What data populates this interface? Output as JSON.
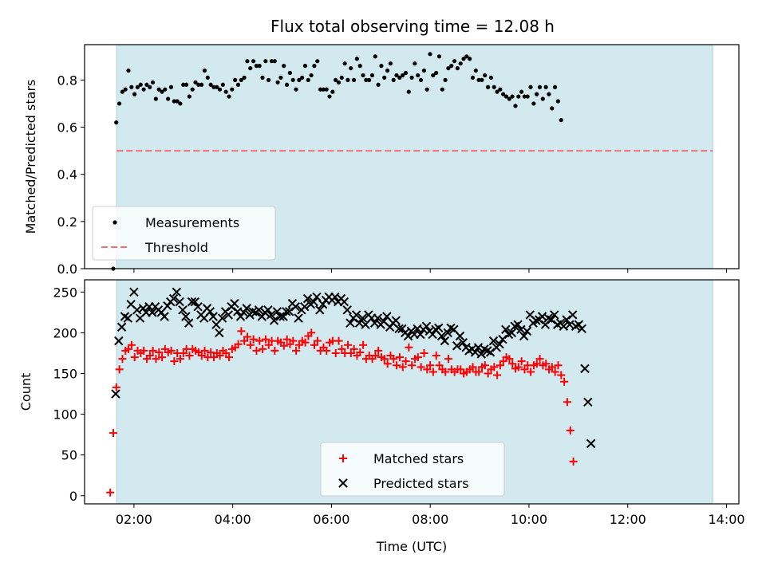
{
  "chart_data": [
    {
      "type": "scatter",
      "title": "Flux total observing time = 12.08 h",
      "xlabel": "",
      "ylabel": "Matched/Predicted stars",
      "xlim_hours": [
        1.0,
        14.25
      ],
      "ylim": [
        0,
        0.95
      ],
      "yticks": [
        0.0,
        0.2,
        0.4,
        0.6,
        0.8
      ],
      "ytick_labels": [
        "0.0",
        "0.2",
        "0.4",
        "0.6",
        "0.8"
      ],
      "shaded_span_hours": [
        1.65,
        13.72
      ],
      "shade_color": "#d3e9f0",
      "legend_location": "lower-left",
      "series": [
        {
          "name": "Measurements",
          "marker": "dot",
          "color": "#000000",
          "x_start_hour": 1.58,
          "x_step_hour": 0.0617,
          "values": [
            0.0,
            0.62,
            0.7,
            0.75,
            0.76,
            0.84,
            0.77,
            0.74,
            0.77,
            0.78,
            0.76,
            0.78,
            0.77,
            0.79,
            0.72,
            0.76,
            0.75,
            0.76,
            0.72,
            0.77,
            0.71,
            0.71,
            0.7,
            0.78,
            0.78,
            0.73,
            0.76,
            0.79,
            0.78,
            0.78,
            0.84,
            0.81,
            0.78,
            0.77,
            0.77,
            0.76,
            0.78,
            0.75,
            0.73,
            0.76,
            0.8,
            0.78,
            0.8,
            0.81,
            0.88,
            0.85,
            0.88,
            0.86,
            0.86,
            0.81,
            0.88,
            0.8,
            0.88,
            0.88,
            0.79,
            0.81,
            0.86,
            0.78,
            0.83,
            0.8,
            0.76,
            0.8,
            0.81,
            0.86,
            0.8,
            0.82,
            0.86,
            0.88,
            0.76,
            0.76,
            0.76,
            0.73,
            0.75,
            0.8,
            0.79,
            0.81,
            0.87,
            0.8,
            0.85,
            0.8,
            0.89,
            0.86,
            0.82,
            0.8,
            0.8,
            0.82,
            0.9,
            0.78,
            0.86,
            0.81,
            0.84,
            0.87,
            0.8,
            0.82,
            0.81,
            0.82,
            0.83,
            0.75,
            0.81,
            0.87,
            0.82,
            0.8,
            0.84,
            0.76,
            0.91,
            0.82,
            0.83,
            0.9,
            0.76,
            0.8,
            0.85,
            0.86,
            0.88,
            0.85,
            0.87,
            0.89,
            0.9,
            0.89,
            0.81,
            0.84,
            0.8,
            0.8,
            0.82,
            0.77,
            0.81,
            0.77,
            0.75,
            0.76,
            0.74,
            0.73,
            0.72,
            0.73,
            0.69,
            0.73,
            0.75,
            0.73,
            0.73,
            0.77,
            0.7,
            0.74,
            0.77,
            0.72,
            0.77,
            0.74,
            0.68,
            0.77,
            0.71,
            0.63
          ]
        },
        {
          "name": "Threshold",
          "marker": "dashed-line",
          "color": "#f07070",
          "x_range_hours": [
            1.65,
            13.72
          ],
          "y": 0.5
        }
      ]
    },
    {
      "type": "scatter",
      "title": "",
      "xlabel": "Time (UTC)",
      "ylabel": "Count",
      "xlim_hours": [
        1.0,
        14.25
      ],
      "ylim": [
        -10,
        265
      ],
      "yticks": [
        0,
        50,
        100,
        150,
        200,
        250
      ],
      "ytick_labels": [
        "0",
        "50",
        "100",
        "150",
        "200",
        "250"
      ],
      "xticks_hours": [
        2,
        4,
        6,
        8,
        10,
        12,
        14
      ],
      "xtick_labels": [
        "02:00",
        "04:00",
        "06:00",
        "08:00",
        "10:00",
        "12:00",
        "14:00"
      ],
      "shaded_span_hours": [
        1.65,
        13.72
      ],
      "shade_color": "#d3e9f0",
      "legend_location": "lower-center",
      "series": [
        {
          "name": "Matched stars",
          "marker": "plus",
          "color": "#ff0000",
          "x_start_hour": 1.52,
          "x_step_hour": 0.0617,
          "values": [
            4,
            77,
            133,
            155,
            168,
            178,
            180,
            185,
            170,
            178,
            175,
            178,
            168,
            172,
            178,
            168,
            176,
            170,
            180,
            176,
            178,
            165,
            175,
            168,
            175,
            180,
            172,
            180,
            178,
            176,
            172,
            178,
            170,
            176,
            170,
            175,
            172,
            178,
            175,
            170,
            180,
            182,
            186,
            202,
            190,
            195,
            185,
            192,
            178,
            190,
            180,
            192,
            185,
            190,
            178,
            190,
            188,
            184,
            192,
            186,
            190,
            178,
            185,
            190,
            188,
            196,
            200,
            185,
            190,
            178,
            182,
            178,
            188,
            190,
            175,
            190,
            180,
            175,
            185,
            175,
            180,
            172,
            176,
            185,
            168,
            172,
            168,
            172,
            178,
            170,
            168,
            162,
            172,
            168,
            160,
            170,
            158,
            165,
            182,
            160,
            168,
            170,
            158,
            175,
            155,
            160,
            152,
            172,
            160,
            155,
            152,
            168,
            155,
            152,
            155,
            155,
            150,
            152,
            155,
            158,
            152,
            152,
            158,
            160,
            150,
            155,
            158,
            148,
            160,
            165,
            170,
            168,
            162,
            156,
            158,
            165,
            155,
            160,
            152,
            160,
            162,
            168,
            160,
            162,
            155,
            158,
            152,
            160,
            148,
            140,
            115,
            80,
            42
          ]
        },
        {
          "name": "Predicted stars",
          "marker": "cross",
          "color": "#000000",
          "x_start_hour": 1.63,
          "x_step_hour": 0.0617,
          "values": [
            125,
            190,
            207,
            220,
            218,
            235,
            250,
            228,
            218,
            230,
            225,
            232,
            225,
            232,
            228,
            225,
            220,
            233,
            238,
            242,
            250,
            238,
            228,
            220,
            212,
            238,
            238,
            232,
            222,
            218,
            230,
            226,
            220,
            210,
            200,
            218,
            226,
            222,
            232,
            236,
            226,
            220,
            225,
            230,
            222,
            226,
            225,
            228,
            220,
            225,
            228,
            222,
            215,
            226,
            220,
            220,
            226,
            226,
            236,
            232,
            218,
            228,
            232,
            242,
            235,
            238,
            244,
            228,
            235,
            240,
            244,
            240,
            244,
            238,
            242,
            238,
            228,
            212,
            218,
            222,
            212,
            218,
            210,
            222,
            218,
            212,
            218,
            210,
            214,
            220,
            207,
            212,
            215,
            205,
            205,
            200,
            196,
            202,
            198,
            205,
            198,
            204,
            208,
            202,
            198,
            204,
            206,
            196,
            190,
            200,
            206,
            204,
            184,
            196,
            188,
            182,
            178,
            180,
            176,
            182,
            174,
            180,
            178,
            176,
            190,
            182,
            186,
            192,
            204,
            198,
            200,
            208,
            210,
            204,
            196,
            202,
            222,
            212,
            215,
            216,
            220,
            210,
            218,
            216,
            222,
            210,
            212,
            208,
            216,
            210,
            222,
            208,
            210,
            205,
            156,
            115,
            64
          ]
        }
      ]
    }
  ]
}
